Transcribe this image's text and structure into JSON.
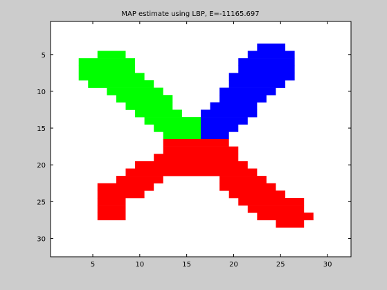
{
  "chart_data": {
    "type": "heatmap",
    "title": "MAP estimate using LBP, E=-11165.697",
    "xlabel": "",
    "ylabel": "",
    "xlim": [
      0.5,
      32.5
    ],
    "ylim": [
      32.5,
      0.5
    ],
    "y_reversed": true,
    "xticks": [
      5,
      10,
      15,
      20,
      25,
      30
    ],
    "yticks": [
      5,
      10,
      15,
      20,
      25,
      30
    ],
    "grid": false,
    "colors": {
      "background": "#ffffff",
      "figure": "#cccccc",
      "green": "#00ff00",
      "blue": "#0000ff",
      "red": "#ff0000"
    },
    "regions": [
      {
        "label": "green",
        "rows": [
          {
            "y": 5,
            "x": [
              6,
              8
            ]
          },
          {
            "y": 6,
            "x": [
              4,
              9
            ]
          },
          {
            "y": 7,
            "x": [
              4,
              9
            ]
          },
          {
            "y": 8,
            "x": [
              4,
              10
            ]
          },
          {
            "y": 9,
            "x": [
              5,
              11
            ]
          },
          {
            "y": 10,
            "x": [
              7,
              12
            ]
          },
          {
            "y": 11,
            "x": [
              8,
              13
            ]
          },
          {
            "y": 12,
            "x": [
              9,
              13
            ]
          },
          {
            "y": 13,
            "x": [
              10,
              14
            ]
          },
          {
            "y": 14,
            "x": [
              11,
              16
            ]
          },
          {
            "y": 15,
            "x": [
              12,
              16
            ]
          },
          {
            "y": 16,
            "x": [
              13,
              16
            ]
          }
        ]
      },
      {
        "label": "blue",
        "rows": [
          {
            "y": 4,
            "x": [
              23,
              25
            ]
          },
          {
            "y": 5,
            "x": [
              22,
              26
            ]
          },
          {
            "y": 6,
            "x": [
              21,
              26
            ]
          },
          {
            "y": 7,
            "x": [
              21,
              26
            ]
          },
          {
            "y": 8,
            "x": [
              20,
              26
            ]
          },
          {
            "y": 9,
            "x": [
              20,
              25
            ]
          },
          {
            "y": 10,
            "x": [
              19,
              24
            ]
          },
          {
            "y": 11,
            "x": [
              19,
              23
            ]
          },
          {
            "y": 12,
            "x": [
              18,
              22
            ]
          },
          {
            "y": 13,
            "x": [
              17,
              22
            ]
          },
          {
            "y": 14,
            "x": [
              17,
              21
            ]
          },
          {
            "y": 15,
            "x": [
              17,
              20
            ]
          },
          {
            "y": 16,
            "x": [
              17,
              19
            ]
          }
        ]
      },
      {
        "label": "red",
        "rows": [
          {
            "y": 17,
            "x": [
              13,
              19
            ]
          },
          {
            "y": 18,
            "x": [
              13,
              20
            ]
          },
          {
            "y": 19,
            "x": [
              12,
              20
            ]
          },
          {
            "y": 20,
            "x": [
              10,
              21
            ]
          },
          {
            "y": 21,
            "x": [
              9,
              22
            ]
          },
          {
            "y": 22,
            "x": [
              8,
              12
            ]
          },
          {
            "y": 22,
            "x": [
              19,
              23
            ]
          },
          {
            "y": 23,
            "x": [
              6,
              11
            ]
          },
          {
            "y": 23,
            "x": [
              19,
              24
            ]
          },
          {
            "y": 24,
            "x": [
              6,
              10
            ]
          },
          {
            "y": 24,
            "x": [
              20,
              25
            ]
          },
          {
            "y": 25,
            "x": [
              6,
              8
            ]
          },
          {
            "y": 25,
            "x": [
              21,
              27
            ]
          },
          {
            "y": 26,
            "x": [
              6,
              8
            ]
          },
          {
            "y": 26,
            "x": [
              22,
              27
            ]
          },
          {
            "y": 27,
            "x": [
              6,
              8
            ]
          },
          {
            "y": 27,
            "x": [
              23,
              28
            ]
          },
          {
            "y": 28,
            "x": [
              25,
              27
            ]
          }
        ]
      }
    ]
  }
}
